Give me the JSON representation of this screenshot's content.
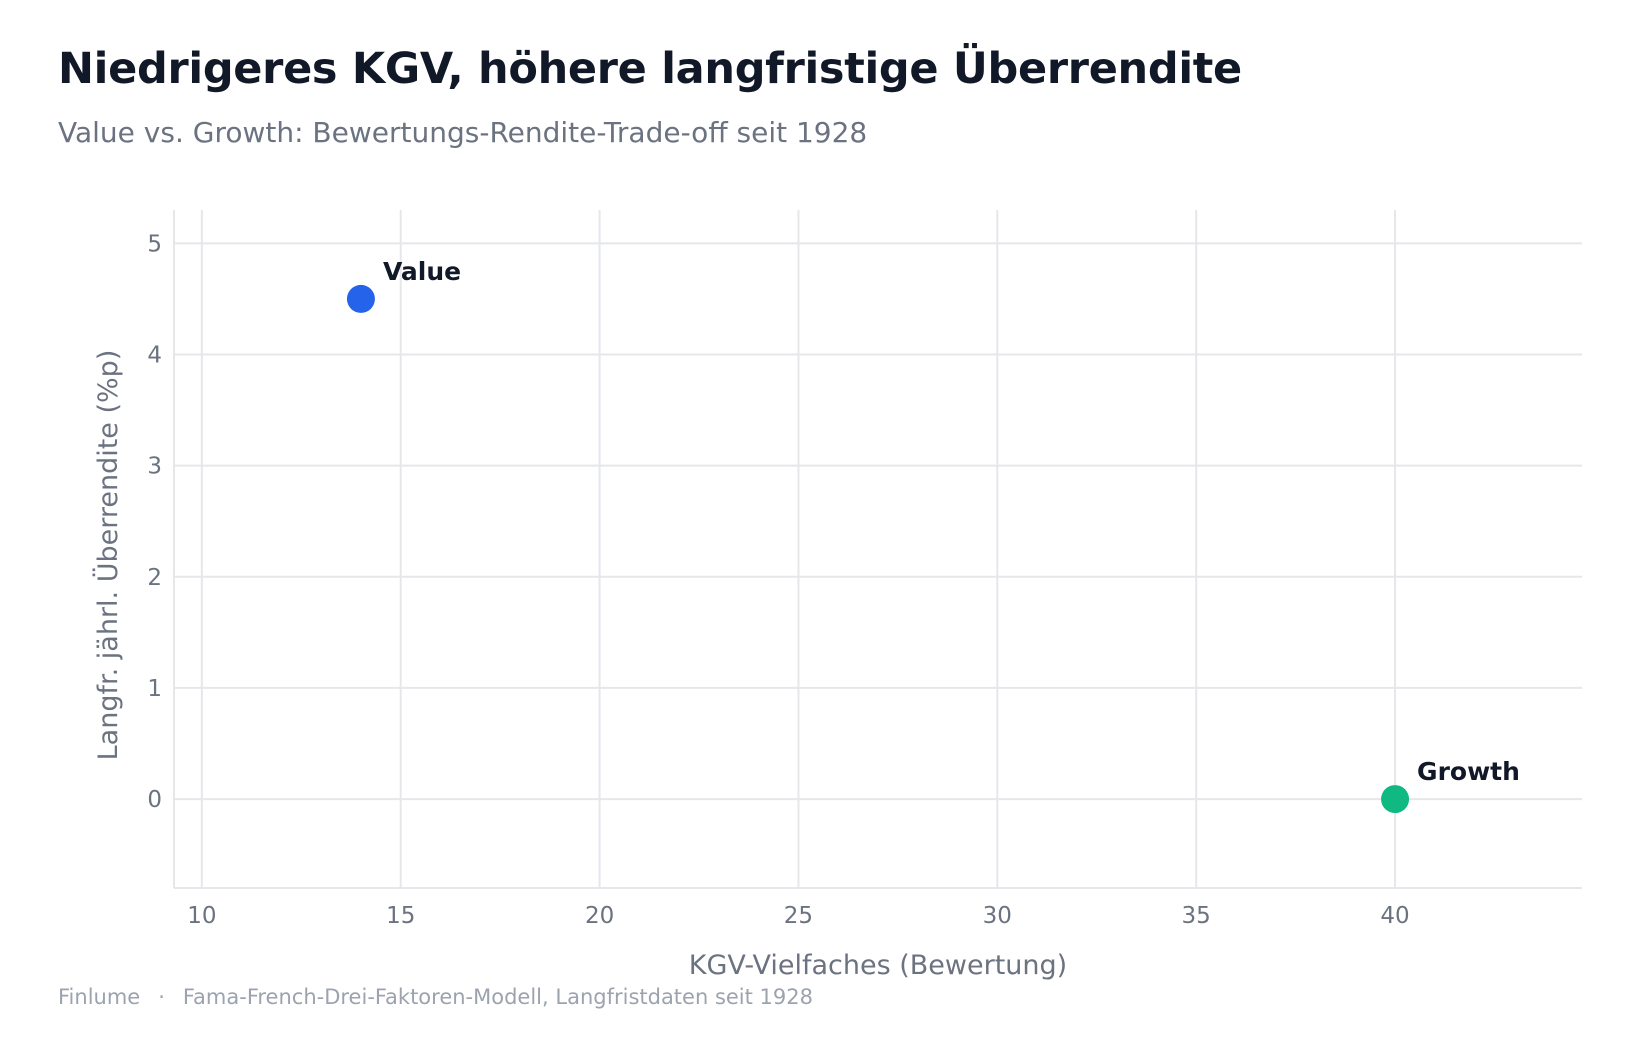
{
  "header": {
    "title": "Niedrigeres KGV, höhere langfristige Überrendite",
    "subtitle": "Value vs. Growth: Bewertungs-Rendite-Trade-off seit 1928"
  },
  "footer": {
    "brand": "Finlume",
    "separator": "·",
    "source": "Fama-French-Drei-Faktoren-Modell, Langfristdaten seit 1928"
  },
  "chart_data": {
    "type": "scatter",
    "title": "Niedrigeres KGV, höhere langfristige Überrendite",
    "subtitle": "Value vs. Growth: Bewertungs-Rendite-Trade-off seit 1928",
    "xlabel": "KGV-Vielfaches (Bewertung)",
    "ylabel": "Langfr. jährl. Überrendite (%p)",
    "xlim": [
      9.3,
      44.7
    ],
    "ylim": [
      -0.8,
      5.3
    ],
    "xticks": [
      10,
      15,
      20,
      25,
      30,
      35,
      40
    ],
    "yticks": [
      0,
      1,
      2,
      3,
      4,
      5
    ],
    "grid": true,
    "points": [
      {
        "label": "Value",
        "x": 14,
        "y": 4.5,
        "color": "#2563eb"
      },
      {
        "label": "Growth",
        "x": 40,
        "y": 0,
        "color": "#10b981"
      }
    ]
  }
}
